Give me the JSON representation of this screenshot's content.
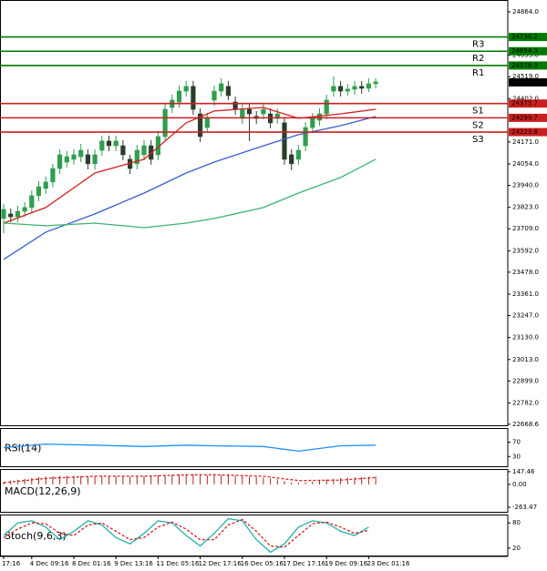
{
  "chart_data": [
    {
      "type": "candlestick",
      "categories": [
        "17:16",
        null,
        null,
        null,
        "4 Dec 09:16",
        null,
        null,
        null,
        null,
        null,
        "8 Dec 01:16",
        null,
        null,
        null,
        null,
        null,
        "9 Dec 13:16",
        null,
        null,
        null,
        null,
        null,
        "11 Dec 05:16",
        null,
        null,
        null,
        null,
        null,
        "12 Dec 17:16",
        null,
        null,
        null,
        null,
        null,
        "16 Dec 05:16",
        null,
        null,
        null,
        null,
        null,
        "17 Dec 17:16",
        null,
        null,
        null,
        null,
        null,
        "19 Dec 09:16",
        null,
        null,
        null,
        null,
        null,
        "23 Dec 01:16",
        null
      ],
      "open": [
        23764,
        23788,
        23773,
        23802,
        23822,
        23885,
        23924,
        23958,
        24030,
        24064,
        24079,
        24093,
        24103,
        24055,
        24127,
        24176,
        24151,
        24151,
        24079,
        24055,
        24103,
        24151,
        24103,
        24200,
        24355,
        24384,
        24442,
        24467,
        24321,
        24248,
        24394,
        24442,
        24467,
        24384,
        24297,
        24345,
        24307,
        24321,
        24321,
        24297,
        24273,
        24103,
        24079,
        24151,
        24248,
        24287,
        24321,
        24442,
        24467,
        24442,
        24452,
        24467,
        24457,
        24481
      ],
      "high": [
        23841,
        23817,
        23832,
        23851,
        23914,
        23962,
        23987,
        24055,
        24132,
        24122,
        24132,
        24161,
        24132,
        24132,
        24205,
        24205,
        24205,
        24181,
        24103,
        24156,
        24181,
        24181,
        24229,
        24374,
        24423,
        24471,
        24496,
        24496,
        24350,
        24326,
        24471,
        24510,
        24496,
        24413,
        24374,
        24374,
        24336,
        24374,
        24350,
        24350,
        24297,
        24132,
        24156,
        24277,
        24326,
        24350,
        24423,
        24520,
        24496,
        24481,
        24496,
        24496,
        24510,
        24510
      ],
      "low": [
        23686,
        23744,
        23744,
        23773,
        23793,
        23856,
        23895,
        23929,
        24001,
        24035,
        24050,
        24064,
        24025,
        24025,
        24098,
        24122,
        24122,
        24074,
        24001,
        24025,
        24074,
        24050,
        24074,
        24176,
        24326,
        24355,
        24413,
        24316,
        24171,
        24219,
        24365,
        24413,
        24394,
        24316,
        24268,
        24176,
        24268,
        24292,
        24244,
        24268,
        24050,
        24021,
        24050,
        24122,
        24219,
        24258,
        24292,
        24413,
        24413,
        24418,
        24423,
        24428,
        24437,
        24457
      ],
      "close": [
        23812,
        23773,
        23802,
        23822,
        23885,
        23933,
        23958,
        24030,
        24103,
        24093,
        24103,
        24127,
        24055,
        24103,
        24176,
        24151,
        24176,
        24103,
        24030,
        24127,
        24151,
        24079,
        24200,
        24345,
        24394,
        24442,
        24467,
        24345,
        24200,
        24297,
        24442,
        24481,
        24418,
        24345,
        24345,
        24321,
        24297,
        24345,
        24273,
        24321,
        24079,
        24055,
        24127,
        24248,
        24297,
        24321,
        24394,
        24467,
        24442,
        24452,
        24467,
        24457,
        24481,
        24491
      ],
      "up_color": "#2e9e4f",
      "down_color": "#2b3d2b",
      "ylim": [
        22658,
        24927
      ],
      "yticks": [
        {
          "value": 24864,
          "label": "24864.0"
        },
        {
          "value": 24633,
          "label": "24633.0"
        },
        {
          "value": 24519,
          "label": "24519.0"
        },
        {
          "value": 24402,
          "label": "24402.0"
        },
        {
          "value": 24171,
          "label": "24171.0"
        },
        {
          "value": 24054,
          "label": "24054.0"
        },
        {
          "value": 23940,
          "label": "23940.0"
        },
        {
          "value": 23823,
          "label": "23823.0"
        },
        {
          "value": 23709,
          "label": "23709.0"
        },
        {
          "value": 23592,
          "label": "23592.0"
        },
        {
          "value": 23478,
          "label": "23478.0"
        },
        {
          "value": 23361,
          "label": "23361.0"
        },
        {
          "value": 23247,
          "label": "23247.0"
        },
        {
          "value": 23130,
          "label": "23130.0"
        },
        {
          "value": 23013,
          "label": "23013.0"
        },
        {
          "value": 22899,
          "label": "22899.0"
        },
        {
          "value": 22782,
          "label": "22782.0"
        },
        22668.6
      ],
      "series": [
        {
          "color": "#d62020",
          "x": [
            0,
            6,
            13,
            20,
            26,
            30,
            37,
            42,
            48,
            53
          ],
          "values": [
            23739,
            23822,
            24006,
            24079,
            24273,
            24336,
            24355,
            24297,
            24321,
            24345
          ]
        },
        {
          "color": "#3a5fcd",
          "x": [
            0,
            6,
            13,
            20,
            26,
            30,
            37,
            42,
            48,
            53
          ],
          "values": [
            23546,
            23691,
            23788,
            23899,
            24006,
            24064,
            24151,
            24210,
            24258,
            24307
          ]
        },
        {
          "color": "#3cb371",
          "x": [
            0,
            6,
            13,
            20,
            26,
            30,
            37,
            42,
            48,
            53
          ],
          "values": [
            23739,
            23725,
            23739,
            23715,
            23739,
            23764,
            23822,
            23899,
            23982,
            24079
          ]
        }
      ],
      "levels": [
        {
          "name": "R3",
          "value": 24730.2,
          "color": "#007a00"
        },
        {
          "name": "R2",
          "value": 24654.3,
          "color": "#007a00"
        },
        {
          "name": "R1",
          "value": 24578.3,
          "color": "#007a00"
        },
        {
          "name": "S1",
          "value": 24375.7,
          "color": "#cc1f1f"
        },
        {
          "name": "S2",
          "value": 24299.7,
          "color": "#cc1f1f"
        },
        {
          "name": "S3",
          "value": 24223.8,
          "color": "#cc1f1f"
        }
      ],
      "last_price": 24488.5
    },
    {
      "type": "line",
      "title": "RSI(14)",
      "ylim": [
        0,
        110
      ],
      "yticks": [
        70,
        30
      ],
      "series": [
        {
          "color": "#1e90ff",
          "x": [
            0,
            6,
            13,
            20,
            26,
            30,
            37,
            42,
            48,
            53
          ],
          "values": [
            55,
            65,
            62,
            58,
            62,
            60,
            58,
            45,
            60,
            62
          ]
        }
      ]
    },
    {
      "type": "bar",
      "title": "MACD(12,26,9)",
      "ylim": [
        -326,
        178
      ],
      "yticks": [
        147.46,
        {
          "value": 0,
          "label": "0.00"
        },
        -263.47
      ],
      "color": "#b22222",
      "values": [
        30,
        45,
        55,
        65,
        75,
        85,
        90,
        95,
        100,
        100,
        100,
        98,
        95,
        95,
        98,
        98,
        95,
        92,
        90,
        92,
        95,
        100,
        105,
        110,
        115,
        118,
        120,
        118,
        110,
        105,
        105,
        108,
        105,
        100,
        95,
        90,
        85,
        80,
        70,
        60,
        40,
        25,
        20,
        25,
        35,
        45,
        55,
        65,
        72,
        78,
        82,
        85,
        88,
        90
      ],
      "series": [
        {
          "color": "#d62020",
          "style": "dashed",
          "x": [
            0,
            6,
            13,
            20,
            26,
            30,
            37,
            42,
            48,
            53
          ],
          "values": [
            20,
            70,
            95,
            95,
            110,
            112,
            95,
            45,
            50,
            80
          ]
        }
      ]
    },
    {
      "type": "line",
      "title": "Stoch(9,6,3)",
      "ylim": [
        0,
        100
      ],
      "yticks": [
        80,
        20
      ],
      "series": [
        {
          "color": "#20b2aa",
          "x": [
            0,
            2,
            4,
            6,
            8,
            10,
            12,
            14,
            16,
            18,
            20,
            22,
            24,
            26,
            28,
            30,
            32,
            34,
            36,
            38,
            40,
            42,
            44,
            46,
            48,
            50,
            52
          ],
          "values": [
            50,
            80,
            85,
            70,
            40,
            60,
            85,
            75,
            45,
            30,
            55,
            85,
            80,
            50,
            25,
            55,
            90,
            85,
            40,
            10,
            30,
            70,
            85,
            80,
            60,
            50,
            70
          ]
        },
        {
          "color": "#d62020",
          "style": "dashed",
          "x": [
            0,
            2,
            4,
            6,
            8,
            10,
            12,
            14,
            16,
            18,
            20,
            22,
            24,
            26,
            28,
            30,
            32,
            34,
            36,
            38,
            40,
            42,
            44,
            46,
            48,
            50,
            52
          ],
          "values": [
            45,
            65,
            80,
            78,
            55,
            50,
            75,
            80,
            60,
            40,
            45,
            70,
            82,
            65,
            40,
            40,
            75,
            88,
            60,
            25,
            22,
            50,
            78,
            82,
            70,
            55,
            62
          ]
        }
      ]
    }
  ]
}
